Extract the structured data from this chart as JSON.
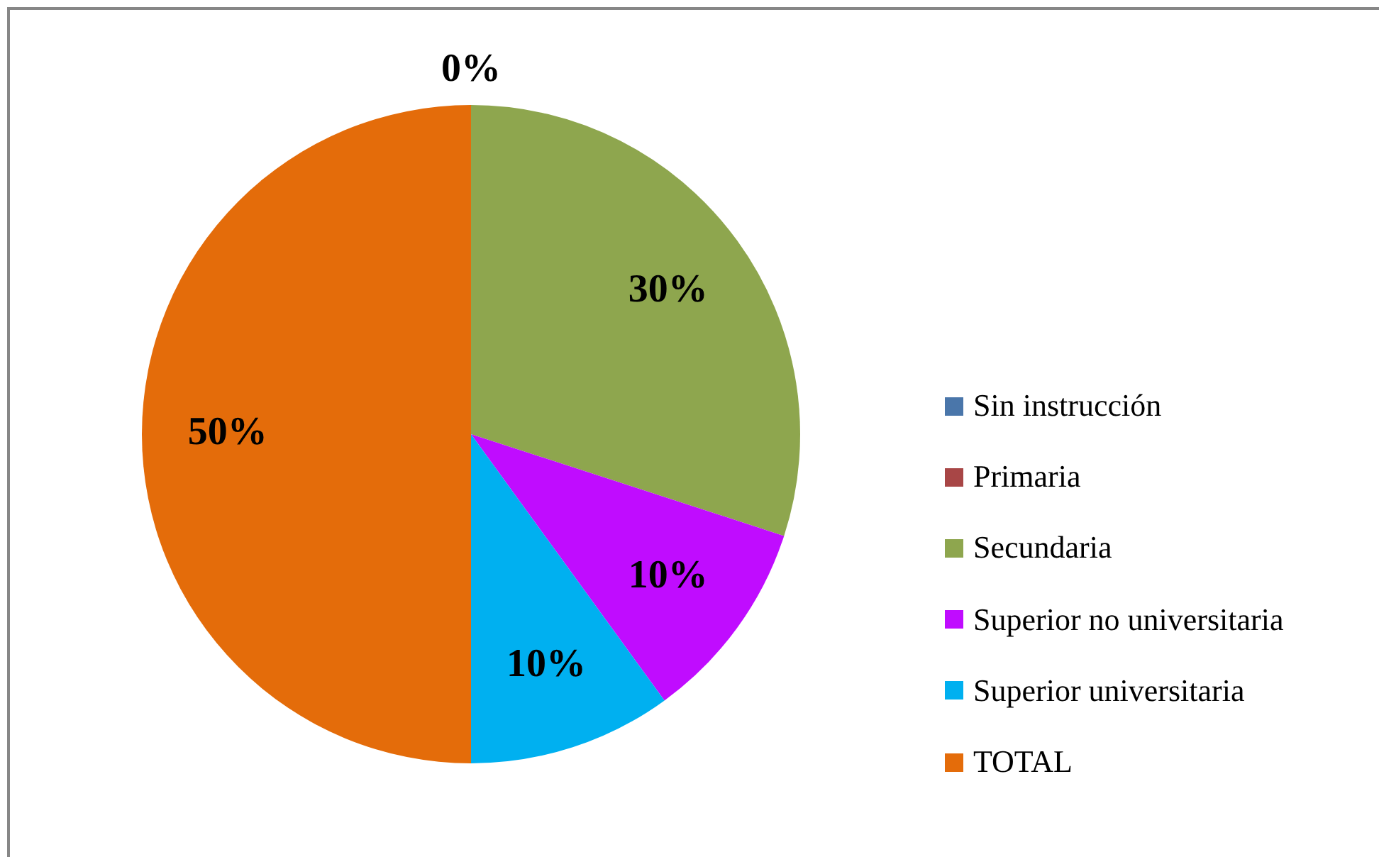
{
  "chart_data": {
    "type": "pie",
    "categories": [
      "Sin instrucción",
      "Primaria",
      "Secundaria",
      "Superior no universitaria",
      "Superior universitaria",
      "TOTAL"
    ],
    "values": [
      0,
      0,
      30,
      10,
      10,
      50
    ],
    "colors": [
      "#4a76aa",
      "#a84646",
      "#8ea64e",
      "#c00cff",
      "#00b0f0",
      "#e46c0a"
    ],
    "value_labels": [
      "0%",
      null,
      "30%",
      "10%",
      "10%",
      "50%"
    ],
    "legend": "right"
  }
}
